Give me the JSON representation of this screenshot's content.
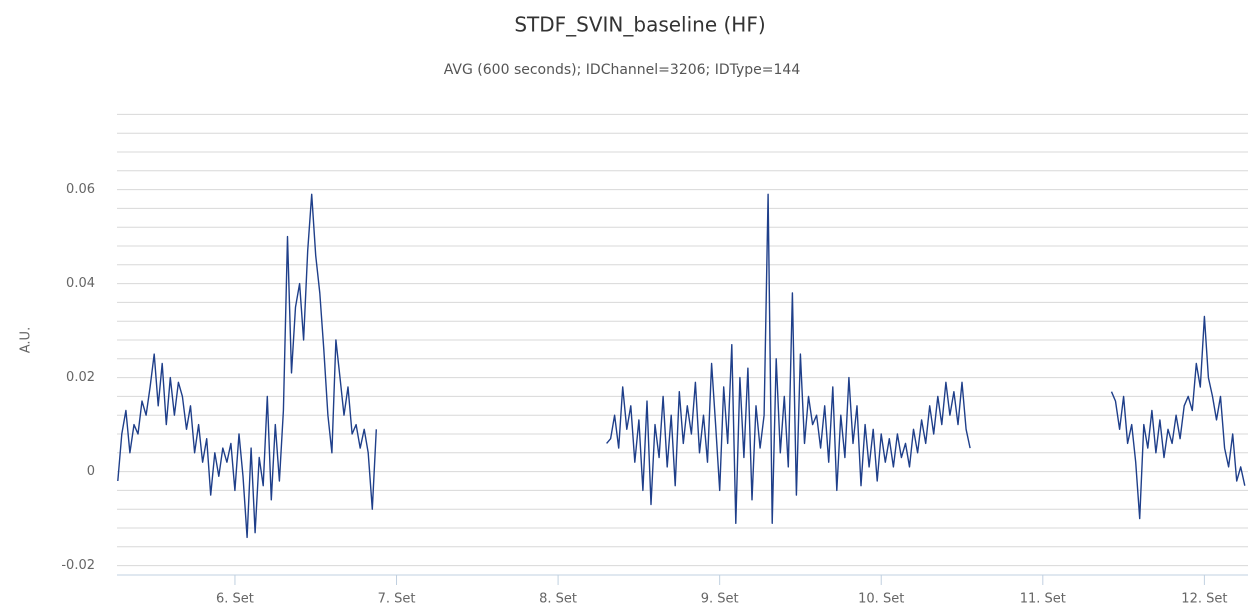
{
  "chart_data": {
    "type": "line",
    "title": "STDF_SVIN_baseline (HF)",
    "subtitle": "AVG (600 seconds); IDChannel=3206; IDType=144",
    "y_label": "A.U.",
    "xlim": [
      5.27,
      12.27
    ],
    "xticks": [
      {
        "value": 6,
        "label": "6. Set"
      },
      {
        "value": 7,
        "label": "7. Set"
      },
      {
        "value": 8,
        "label": "8. Set"
      },
      {
        "value": 9,
        "label": "9. Set"
      },
      {
        "value": 10,
        "label": "10. Set"
      },
      {
        "value": 11,
        "label": "11. Set"
      },
      {
        "value": 12,
        "label": "12. Set"
      }
    ],
    "ylim": [
      -0.022,
      0.078
    ],
    "yticks": [
      -0.02,
      0,
      0.02,
      0.04,
      0.06
    ],
    "ygrid": [
      -0.02,
      -0.016,
      -0.012,
      -0.008,
      -0.004,
      0,
      0.004,
      0.008,
      0.012,
      0.016,
      0.02,
      0.024,
      0.028,
      0.032,
      0.036,
      0.04,
      0.044,
      0.048,
      0.052,
      0.056,
      0.06,
      0.064,
      0.068,
      0.072,
      0.076
    ],
    "grid": true,
    "x": [
      5.275,
      5.3,
      5.325,
      5.35,
      5.375,
      5.4,
      5.425,
      5.45,
      5.475,
      5.5,
      5.525,
      5.55,
      5.575,
      5.6,
      5.625,
      5.65,
      5.675,
      5.7,
      5.725,
      5.75,
      5.775,
      5.8,
      5.825,
      5.85,
      5.875,
      5.9,
      5.925,
      5.95,
      5.975,
      6.0,
      6.025,
      6.05,
      6.075,
      6.1,
      6.125,
      6.15,
      6.175,
      6.2,
      6.225,
      6.25,
      6.275,
      6.3,
      6.325,
      6.35,
      6.375,
      6.4,
      6.425,
      6.45,
      6.475,
      6.5,
      6.525,
      6.55,
      6.575,
      6.6,
      6.625,
      6.65,
      6.675,
      6.7,
      6.725,
      6.75,
      6.775,
      6.8,
      6.825,
      6.85,
      6.875,
      7.5,
      8.3,
      8.325,
      8.35,
      8.375,
      8.4,
      8.425,
      8.45,
      8.475,
      8.5,
      8.525,
      8.55,
      8.575,
      8.6,
      8.625,
      8.65,
      8.675,
      8.7,
      8.725,
      8.75,
      8.775,
      8.8,
      8.825,
      8.85,
      8.875,
      8.9,
      8.925,
      8.95,
      8.975,
      9.0,
      9.025,
      9.05,
      9.075,
      9.1,
      9.125,
      9.15,
      9.175,
      9.2,
      9.225,
      9.25,
      9.275,
      9.3,
      9.325,
      9.35,
      9.375,
      9.4,
      9.425,
      9.45,
      9.475,
      9.5,
      9.525,
      9.55,
      9.575,
      9.6,
      9.625,
      9.65,
      9.675,
      9.7,
      9.725,
      9.75,
      9.775,
      9.8,
      9.825,
      9.85,
      9.875,
      9.9,
      9.925,
      9.95,
      9.975,
      10.0,
      10.025,
      10.05,
      10.075,
      10.1,
      10.125,
      10.15,
      10.175,
      10.2,
      10.225,
      10.25,
      10.275,
      10.3,
      10.325,
      10.35,
      10.375,
      10.4,
      10.425,
      10.45,
      10.475,
      10.5,
      10.525,
      10.55,
      11.0,
      11.425,
      11.45,
      11.475,
      11.5,
      11.525,
      11.55,
      11.575,
      11.6,
      11.625,
      11.65,
      11.675,
      11.7,
      11.725,
      11.75,
      11.775,
      11.8,
      11.825,
      11.85,
      11.875,
      11.9,
      11.925,
      11.95,
      11.975,
      12.0,
      12.025,
      12.05,
      12.075,
      12.1,
      12.125,
      12.15,
      12.175,
      12.2,
      12.225,
      12.25
    ],
    "series": [
      {
        "color": "#1f3f8a",
        "values": [
          -0.002,
          0.008,
          0.013,
          0.004,
          0.01,
          0.008,
          0.015,
          0.012,
          0.018,
          0.025,
          0.014,
          0.023,
          0.01,
          0.02,
          0.012,
          0.019,
          0.016,
          0.009,
          0.014,
          0.004,
          0.01,
          0.002,
          0.007,
          -0.005,
          0.004,
          -0.001,
          0.005,
          0.002,
          0.006,
          -0.004,
          0.008,
          -0.001,
          -0.014,
          0.005,
          -0.013,
          0.003,
          -0.003,
          0.016,
          -0.006,
          0.01,
          -0.002,
          0.013,
          0.05,
          0.021,
          0.035,
          0.04,
          0.028,
          0.047,
          0.059,
          0.046,
          0.038,
          0.026,
          0.012,
          0.004,
          0.028,
          0.02,
          0.012,
          0.018,
          0.008,
          0.01,
          0.005,
          0.009,
          0.004,
          -0.008,
          0.009,
          null,
          0.006,
          0.007,
          0.012,
          0.005,
          0.018,
          0.009,
          0.014,
          0.002,
          0.011,
          -0.004,
          0.015,
          -0.007,
          0.01,
          0.003,
          0.016,
          0.001,
          0.012,
          -0.003,
          0.017,
          0.006,
          0.014,
          0.008,
          0.019,
          0.004,
          0.012,
          0.002,
          0.023,
          0.01,
          -0.004,
          0.018,
          0.006,
          0.027,
          -0.011,
          0.02,
          0.003,
          0.022,
          -0.006,
          0.014,
          0.005,
          0.012,
          0.059,
          -0.011,
          0.024,
          0.004,
          0.016,
          0.001,
          0.038,
          -0.005,
          0.025,
          0.006,
          0.016,
          0.01,
          0.012,
          0.005,
          0.014,
          0.002,
          0.018,
          -0.004,
          0.012,
          0.003,
          0.02,
          0.006,
          0.014,
          -0.003,
          0.01,
          0.001,
          0.009,
          -0.002,
          0.008,
          0.002,
          0.007,
          0.001,
          0.008,
          0.003,
          0.006,
          0.001,
          0.009,
          0.004,
          0.011,
          0.006,
          0.014,
          0.008,
          0.016,
          0.01,
          0.019,
          0.012,
          0.017,
          0.01,
          0.019,
          0.009,
          0.005,
          null,
          0.017,
          0.015,
          0.009,
          0.016,
          0.006,
          0.01,
          0.002,
          -0.01,
          0.01,
          0.005,
          0.013,
          0.004,
          0.011,
          0.003,
          0.009,
          0.006,
          0.012,
          0.007,
          0.014,
          0.016,
          0.013,
          0.023,
          0.018,
          0.033,
          0.02,
          0.016,
          0.011,
          0.016,
          0.005,
          0.001,
          0.008,
          -0.002,
          0.001,
          -0.003
        ]
      }
    ]
  }
}
